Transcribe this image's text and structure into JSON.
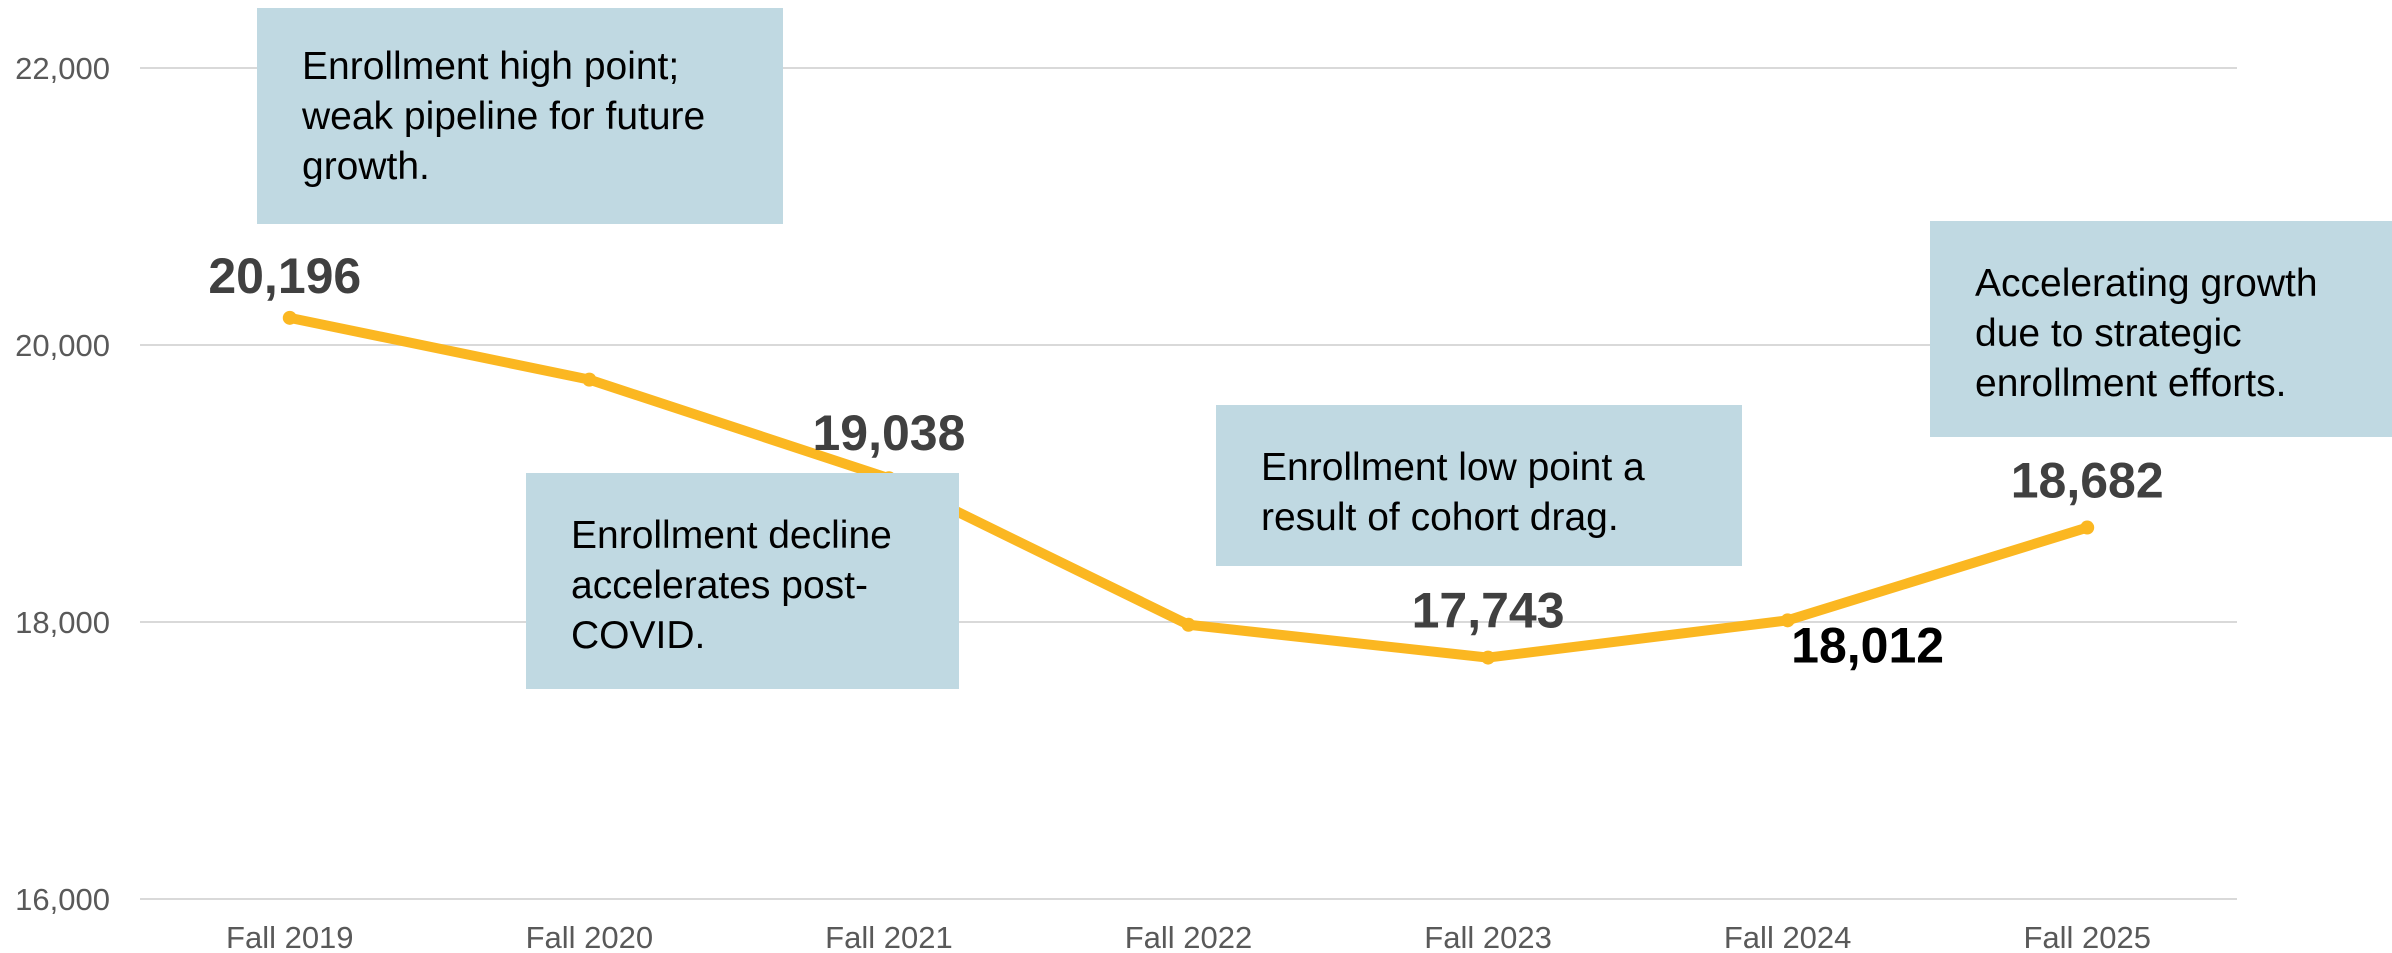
{
  "chart_data": {
    "type": "line",
    "title": "",
    "xlabel": "",
    "ylabel": "",
    "categories": [
      "Fall 2019",
      "Fall 2020",
      "Fall 2021",
      "Fall 2022",
      "Fall 2023",
      "Fall 2024",
      "Fall 2025"
    ],
    "series": [
      {
        "values": [
          20196,
          19750,
          19038,
          17980,
          17743,
          18012,
          18682
        ],
        "color": "#fbb721"
      }
    ],
    "data_labels": [
      {
        "category": "Fall 2019",
        "value": 20196,
        "text": "20,196"
      },
      {
        "category": "Fall 2021",
        "value": 19038,
        "text": "19,038"
      },
      {
        "category": "Fall 2023",
        "value": 17743,
        "text": "17,743"
      },
      {
        "category": "Fall 2024",
        "value": 18012,
        "text": "18,012"
      },
      {
        "category": "Fall 2025",
        "value": 18682,
        "text": "18,682"
      }
    ],
    "ylim": [
      16000,
      22000
    ],
    "y_ticks": [
      16000,
      18000,
      20000,
      22000
    ],
    "y_tick_labels": [
      "16,000",
      "18,000",
      "20,000",
      "22,000"
    ],
    "grid": true,
    "legend": "none",
    "annotations": [
      "Enrollment high point; weak pipeline for future growth.",
      "Enrollment decline accelerates post-COVID.",
      "Enrollment low point a result of cohort drag.",
      "Accelerating growth due to strategic enrollment efforts."
    ],
    "colors": {
      "line": "#fbb721",
      "annotation_box": "#c0d9e2",
      "grid": "#d9d9d9",
      "data_label": "#404040",
      "tick_label": "#595959"
    }
  }
}
